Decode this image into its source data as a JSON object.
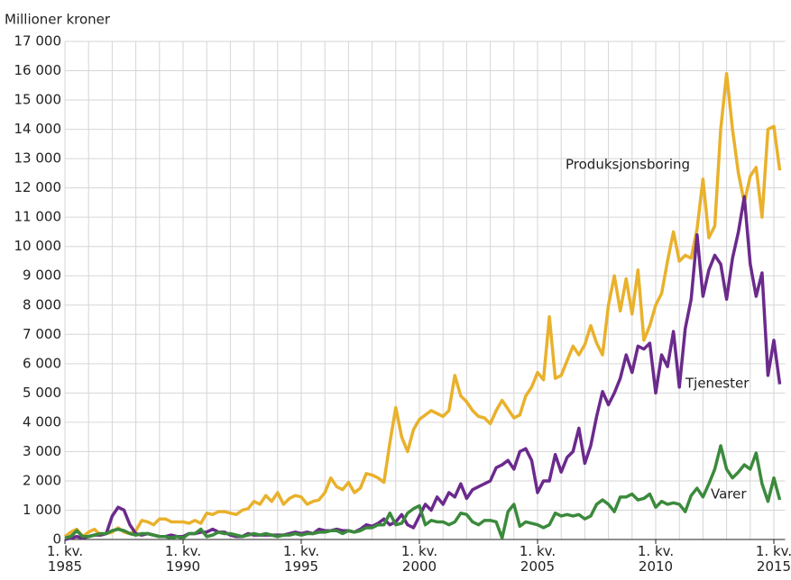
{
  "chart_data": {
    "type": "line",
    "y_label": "Millioner kroner",
    "categories": [
      "1. kv.\n1985",
      null,
      null,
      null,
      null,
      null,
      null,
      null,
      null,
      null,
      null,
      null,
      null,
      null,
      null,
      null,
      null,
      null,
      null,
      null,
      "1. kv.\n1990",
      null,
      null,
      null,
      null,
      null,
      null,
      null,
      null,
      null,
      null,
      null,
      null,
      null,
      null,
      null,
      null,
      null,
      null,
      null,
      "1. kv.\n1995",
      null,
      null,
      null,
      null,
      null,
      null,
      null,
      null,
      null,
      null,
      null,
      null,
      null,
      null,
      null,
      null,
      null,
      null,
      null,
      "1. kv.\n2000",
      null,
      null,
      null,
      null,
      null,
      null,
      null,
      null,
      null,
      null,
      null,
      null,
      null,
      null,
      null,
      null,
      null,
      null,
      null,
      "1. kv.\n2005",
      null,
      null,
      null,
      null,
      null,
      null,
      null,
      null,
      null,
      null,
      null,
      null,
      null,
      null,
      null,
      null,
      null,
      null,
      null,
      "1. kv.\n2010",
      null,
      null,
      null,
      null,
      null,
      null,
      null,
      null,
      null,
      null,
      null,
      null,
      null,
      null,
      null,
      null,
      null,
      null,
      null,
      "1. kv.\n2015",
      null
    ],
    "series": [
      {
        "name": "Produksjonsboring",
        "color": "#e9b12c",
        "values": [
          100,
          250,
          350,
          100,
          250,
          350,
          150,
          200,
          250,
          400,
          250,
          200,
          300,
          650,
          600,
          500,
          700,
          700,
          600,
          600,
          600,
          550,
          650,
          550,
          900,
          850,
          950,
          950,
          900,
          850,
          1000,
          1050,
          1300,
          1200,
          1500,
          1300,
          1600,
          1200,
          1400,
          1500,
          1450,
          1200,
          1300,
          1350,
          1600,
          2100,
          1800,
          1700,
          1950,
          1600,
          1750,
          2250,
          2200,
          2100,
          1950,
          3300,
          4500,
          3500,
          3000,
          3750,
          4100,
          4250,
          4400,
          4300,
          4200,
          4400,
          5600,
          4900,
          4700,
          4400,
          4200,
          4150,
          3950,
          4400,
          4750,
          4450,
          4150,
          4250,
          4900,
          5200,
          5700,
          5450,
          7600,
          5500,
          5600,
          6100,
          6600,
          6300,
          6650,
          7300,
          6700,
          6300,
          8000,
          9000,
          7800,
          8900,
          7700,
          9200,
          6800,
          7300,
          8000,
          8400,
          9500,
          10500,
          9500,
          9700,
          9600,
          10600,
          12300,
          10300,
          10700,
          14000,
          15900,
          14000,
          12500,
          11500,
          12400,
          12700,
          11000,
          14000,
          14100,
          12600
        ]
      },
      {
        "name": "Tjenester",
        "color": "#6b2a8c",
        "values": [
          0,
          50,
          100,
          50,
          100,
          150,
          150,
          200,
          800,
          1100,
          1000,
          500,
          200,
          150,
          200,
          150,
          100,
          100,
          150,
          100,
          100,
          200,
          200,
          250,
          250,
          350,
          250,
          250,
          150,
          100,
          100,
          200,
          150,
          150,
          150,
          150,
          150,
          150,
          200,
          250,
          200,
          250,
          200,
          350,
          300,
          300,
          350,
          300,
          300,
          250,
          350,
          500,
          450,
          550,
          700,
          500,
          600,
          850,
          500,
          400,
          800,
          1200,
          1000,
          1450,
          1200,
          1600,
          1450,
          1900,
          1400,
          1700,
          1800,
          1900,
          2000,
          2450,
          2550,
          2700,
          2400,
          3000,
          3100,
          2700,
          1600,
          2000,
          2000,
          2900,
          2300,
          2800,
          3000,
          3800,
          2600,
          3200,
          4200,
          5050,
          4600,
          5000,
          5500,
          6300,
          5700,
          6600,
          6500,
          6700,
          5000,
          6300,
          5900,
          7100,
          5200,
          7200,
          8200,
          10400,
          8300,
          9200,
          9700,
          9400,
          8200,
          9600,
          10500,
          11700,
          9400,
          8300,
          9100,
          5600,
          6800,
          5300
        ]
      },
      {
        "name": "Varer",
        "color": "#3b8a3c",
        "values": [
          50,
          100,
          300,
          100,
          100,
          150,
          200,
          200,
          300,
          350,
          300,
          200,
          150,
          200,
          200,
          150,
          100,
          100,
          50,
          100,
          50,
          200,
          200,
          350,
          100,
          150,
          250,
          200,
          200,
          150,
          100,
          150,
          200,
          150,
          200,
          150,
          100,
          150,
          150,
          200,
          150,
          200,
          200,
          250,
          250,
          300,
          300,
          200,
          300,
          250,
          300,
          400,
          400,
          500,
          500,
          900,
          500,
          550,
          900,
          1050,
          1150,
          500,
          650,
          600,
          600,
          500,
          600,
          900,
          850,
          600,
          500,
          650,
          650,
          600,
          50,
          950,
          1200,
          450,
          600,
          550,
          500,
          400,
          500,
          900,
          800,
          850,
          800,
          850,
          700,
          800,
          1200,
          1350,
          1200,
          950,
          1450,
          1450,
          1550,
          1350,
          1400,
          1550,
          1100,
          1300,
          1200,
          1250,
          1200,
          950,
          1500,
          1750,
          1450,
          1900,
          2400,
          3200,
          2400,
          2100,
          2300,
          2550,
          2400,
          2950,
          1900,
          1300,
          2100,
          1350
        ]
      }
    ],
    "ylim": [
      0,
      17000
    ],
    "yticks": [
      0,
      {
        "value": 1000,
        "label": "1 000"
      },
      {
        "value": 2000,
        "label": "2 000"
      },
      {
        "value": 3000,
        "label": "3 000"
      },
      {
        "value": 4000,
        "label": "4 000"
      },
      {
        "value": 5000,
        "label": "5 000"
      },
      {
        "value": 6000,
        "label": "6 000"
      },
      {
        "value": 7000,
        "label": "7 000"
      },
      {
        "value": 8000,
        "label": "8 000"
      },
      {
        "value": 9000,
        "label": "9 000"
      },
      {
        "value": 10000,
        "label": "10 000"
      },
      {
        "value": 11000,
        "label": "11 000"
      },
      {
        "value": 12000,
        "label": "12 000"
      },
      {
        "value": 13000,
        "label": "13 000"
      },
      {
        "value": 14000,
        "label": "14 000"
      },
      {
        "value": 15000,
        "label": "15 000"
      },
      {
        "value": 16000,
        "label": "16 000"
      },
      {
        "value": 17000,
        "label": "17 000"
      }
    ],
    "grid": true
  }
}
